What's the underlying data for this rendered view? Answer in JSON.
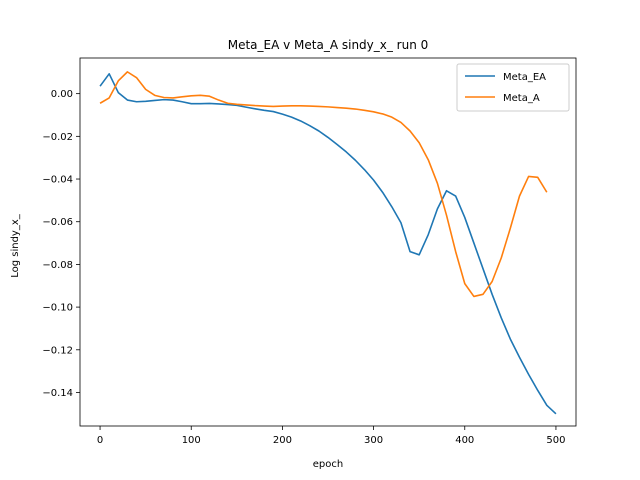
{
  "chart_data": {
    "type": "line",
    "title": "Meta_EA v Meta_A sindy_x_ run 0",
    "xlabel": "epoch",
    "ylabel": "Log sindy_x_",
    "xlim": [
      -22,
      522
    ],
    "ylim": [
      -0.1557,
      0.0167
    ],
    "xticks": [
      0,
      100,
      200,
      300,
      400,
      500
    ],
    "yticks": [
      0.0,
      -0.02,
      -0.04,
      -0.06,
      -0.08,
      -0.1,
      -0.12,
      -0.14
    ],
    "ytick_labels": [
      "0.00",
      "−0.02",
      "−0.04",
      "−0.06",
      "−0.08",
      "−0.10",
      "−0.12",
      "−0.14"
    ],
    "grid": false,
    "legend_position": "top-right",
    "series": [
      {
        "name": "Meta_EA",
        "color": "#1f77b4",
        "x": [
          0,
          10,
          20,
          30,
          40,
          50,
          60,
          70,
          80,
          90,
          100,
          110,
          120,
          130,
          140,
          150,
          160,
          170,
          180,
          190,
          200,
          210,
          220,
          230,
          240,
          250,
          260,
          270,
          280,
          290,
          300,
          310,
          320,
          330,
          340,
          350,
          360,
          370,
          380,
          390,
          400,
          410,
          420,
          430,
          440,
          450,
          460,
          470,
          480,
          490,
          500
        ],
        "y": [
          0.0035,
          0.0093,
          0.0005,
          -0.003,
          -0.0038,
          -0.0036,
          -0.0032,
          -0.0028,
          -0.003,
          -0.0038,
          -0.0047,
          -0.0047,
          -0.0046,
          -0.0048,
          -0.0051,
          -0.0055,
          -0.0063,
          -0.0071,
          -0.0078,
          -0.0084,
          -0.0096,
          -0.011,
          -0.0128,
          -0.015,
          -0.0175,
          -0.0205,
          -0.0238,
          -0.0273,
          -0.0312,
          -0.0356,
          -0.0405,
          -0.0463,
          -0.053,
          -0.0605,
          -0.074,
          -0.0755,
          -0.066,
          -0.054,
          -0.0455,
          -0.048,
          -0.058,
          -0.07,
          -0.082,
          -0.094,
          -0.105,
          -0.115,
          -0.1235,
          -0.1315,
          -0.139,
          -0.146,
          -0.15
        ]
      },
      {
        "name": "Meta_A",
        "color": "#ff7f0e",
        "x": [
          0,
          10,
          20,
          30,
          40,
          50,
          60,
          70,
          80,
          90,
          100,
          110,
          120,
          130,
          140,
          150,
          160,
          170,
          180,
          190,
          200,
          210,
          220,
          230,
          240,
          250,
          260,
          270,
          280,
          290,
          300,
          310,
          320,
          330,
          340,
          350,
          360,
          370,
          380,
          390,
          400,
          410,
          420,
          430,
          440,
          450,
          460,
          470,
          480,
          490
        ],
        "y": [
          -0.0045,
          -0.002,
          0.006,
          0.0102,
          0.0075,
          0.002,
          -0.0008,
          -0.0018,
          -0.002,
          -0.0015,
          -0.001,
          -0.0008,
          -0.0012,
          -0.003,
          -0.0045,
          -0.005,
          -0.0053,
          -0.0056,
          -0.0058,
          -0.006,
          -0.0058,
          -0.0057,
          -0.0057,
          -0.0058,
          -0.006,
          -0.0062,
          -0.0065,
          -0.0068,
          -0.0072,
          -0.0078,
          -0.0085,
          -0.0095,
          -0.011,
          -0.0135,
          -0.0175,
          -0.023,
          -0.031,
          -0.042,
          -0.057,
          -0.074,
          -0.089,
          -0.095,
          -0.094,
          -0.088,
          -0.077,
          -0.063,
          -0.048,
          -0.0388,
          -0.0392,
          -0.0462
        ]
      }
    ]
  }
}
